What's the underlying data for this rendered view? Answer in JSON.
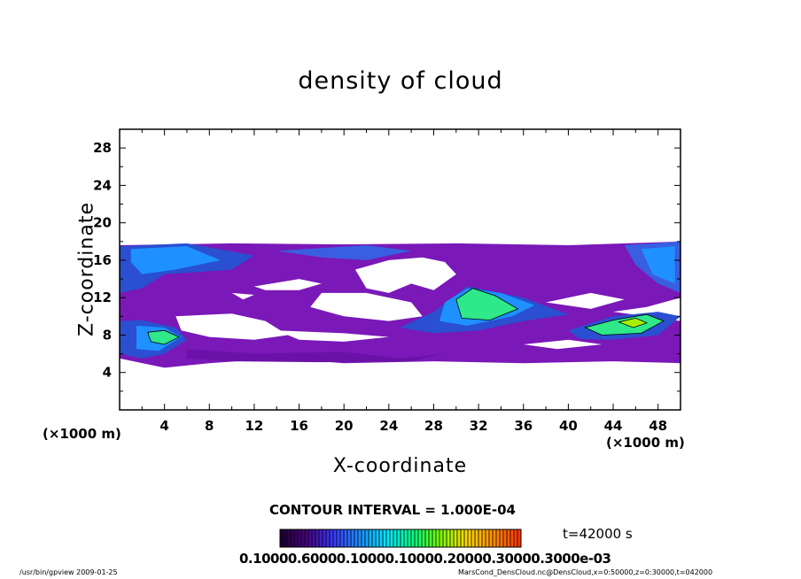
{
  "chart_data": {
    "type": "heatmap",
    "title": "density of cloud",
    "xlabel": "X-coordinate",
    "ylabel": "Z-coordinate",
    "x_unit": "(×1000 m)",
    "xlim": [
      0,
      50
    ],
    "ylim": [
      0,
      30
    ],
    "x_ticks": [
      "4",
      "8",
      "12",
      "16",
      "20",
      "24",
      "28",
      "32",
      "36",
      "40",
      "44",
      "48"
    ],
    "y_ticks": [
      "4",
      "8",
      "12",
      "16",
      "20",
      "24",
      "28"
    ],
    "contour_interval": "CONTOUR INTERVAL = 1.000E-04",
    "time": "t=42000 s",
    "colorbar_labels": "0.10000.60000.10000.10000.20000.30000.3000e-03",
    "colormap": [
      "#1a0030",
      "#4b0082",
      "#3a3aff",
      "#1e90ff",
      "#00e5ff",
      "#00ff7f",
      "#7fff00",
      "#ffd700",
      "#ff8c00",
      "#ff3000"
    ],
    "regions": [
      {
        "level": 1,
        "color": "#7a18b8",
        "points": [
          [
            0,
            17.6
          ],
          [
            10,
            17.8
          ],
          [
            20,
            17.7
          ],
          [
            30,
            17.8
          ],
          [
            40,
            17.6
          ],
          [
            50,
            18
          ],
          [
            50,
            12
          ],
          [
            47,
            11
          ],
          [
            44,
            10.5
          ],
          [
            50,
            9.5
          ],
          [
            50,
            5
          ],
          [
            44,
            5.2
          ],
          [
            36,
            5
          ],
          [
            28,
            5.2
          ],
          [
            20,
            5
          ],
          [
            14,
            5.5
          ],
          [
            8,
            5
          ],
          [
            4,
            4.5
          ],
          [
            0,
            5.5
          ]
        ]
      },
      {
        "level": 1,
        "color": "#6a12a8",
        "points": [
          [
            6,
            6.5
          ],
          [
            12,
            6
          ],
          [
            20,
            6.2
          ],
          [
            25,
            5.5
          ],
          [
            29,
            6
          ],
          [
            26,
            5.2
          ],
          [
            18,
            5.1
          ],
          [
            10,
            5.2
          ],
          [
            6,
            5.5
          ]
        ]
      },
      {
        "level": 2,
        "color": "#2a4fd0",
        "points": [
          [
            0,
            17.5
          ],
          [
            6,
            17.8
          ],
          [
            12,
            16.5
          ],
          [
            10,
            15
          ],
          [
            4,
            14.5
          ],
          [
            2,
            13
          ],
          [
            0,
            12.5
          ]
        ]
      },
      {
        "level": 2,
        "color": "#3a5ee0",
        "points": [
          [
            14,
            17
          ],
          [
            22,
            17.6
          ],
          [
            26,
            17
          ],
          [
            22,
            16
          ],
          [
            18,
            16.3
          ]
        ]
      },
      {
        "level": 2,
        "color": "#3a5ee0",
        "points": [
          [
            45,
            17.6
          ],
          [
            50,
            18
          ],
          [
            50,
            12.5
          ],
          [
            48,
            13.5
          ],
          [
            46,
            15.5
          ]
        ]
      },
      {
        "level": 2,
        "color": "#2a4fd0",
        "points": [
          [
            0,
            9.5
          ],
          [
            2,
            9.6
          ],
          [
            5,
            8.8
          ],
          [
            6,
            7.5
          ],
          [
            4,
            6
          ],
          [
            2,
            5.5
          ],
          [
            0,
            6
          ]
        ]
      },
      {
        "level": 2,
        "color": "#2a4fd0",
        "points": [
          [
            28,
            10.5
          ],
          [
            31,
            13.2
          ],
          [
            36,
            12
          ],
          [
            40,
            10.2
          ],
          [
            36,
            9.5
          ],
          [
            32,
            8.5
          ],
          [
            28,
            8.2
          ],
          [
            25,
            8.8
          ]
        ]
      },
      {
        "level": 2,
        "color": "#2a4fd0",
        "points": [
          [
            40,
            8.5
          ],
          [
            44,
            10
          ],
          [
            48,
            10.5
          ],
          [
            50,
            10
          ],
          [
            48,
            8
          ],
          [
            44,
            7.5
          ],
          [
            41,
            7.6
          ]
        ]
      },
      {
        "level": 3,
        "color": "#1e90ff",
        "points": [
          [
            1,
            17.2
          ],
          [
            6,
            17.5
          ],
          [
            9,
            16
          ],
          [
            5,
            15
          ],
          [
            2,
            14.5
          ],
          [
            1,
            15.8
          ]
        ]
      },
      {
        "level": 3,
        "color": "#1e90ff",
        "points": [
          [
            46.5,
            17.2
          ],
          [
            49.5,
            17.5
          ],
          [
            49.5,
            13.5
          ],
          [
            47.5,
            14.5
          ]
        ]
      },
      {
        "level": 3,
        "color": "#1e90ff",
        "points": [
          [
            29,
            11.5
          ],
          [
            31,
            13
          ],
          [
            34,
            12.5
          ],
          [
            37,
            11.2
          ],
          [
            35,
            10
          ],
          [
            31,
            9
          ],
          [
            28.5,
            9.5
          ]
        ]
      },
      {
        "level": 3,
        "color": "#1e90ff",
        "points": [
          [
            1.5,
            9
          ],
          [
            4,
            8.8
          ],
          [
            5.5,
            7.8
          ],
          [
            3.5,
            6.3
          ],
          [
            1.5,
            6.5
          ]
        ]
      },
      {
        "level": 4,
        "color": "#2ee88a",
        "points": [
          [
            30,
            11.8
          ],
          [
            31.5,
            13
          ],
          [
            33.5,
            12.2
          ],
          [
            35.5,
            10.8
          ],
          [
            33,
            9.6
          ],
          [
            30.5,
            9.8
          ]
        ]
      },
      {
        "level": 4,
        "color": "#2ee88a",
        "points": [
          [
            41.5,
            8.8
          ],
          [
            44,
            9.6
          ],
          [
            47,
            10.2
          ],
          [
            48.5,
            9.5
          ],
          [
            46.5,
            8.2
          ],
          [
            43,
            8
          ]
        ]
      },
      {
        "level": 4,
        "color": "#2ee88a",
        "points": [
          [
            2.5,
            8.3
          ],
          [
            4,
            8.5
          ],
          [
            5.3,
            7.8
          ],
          [
            4,
            7
          ],
          [
            2.8,
            7.3
          ]
        ]
      },
      {
        "level": 5,
        "color": "#a8f000",
        "points": [
          [
            44.5,
            9.4
          ],
          [
            46,
            9.8
          ],
          [
            47,
            9.3
          ],
          [
            45.8,
            8.8
          ]
        ]
      }
    ],
    "gaps": [
      {
        "points": [
          [
            21,
            15
          ],
          [
            24,
            16
          ],
          [
            27,
            16.3
          ],
          [
            29,
            15.8
          ],
          [
            30,
            14.5
          ],
          [
            28,
            12.8
          ],
          [
            26,
            13.5
          ],
          [
            24,
            12.5
          ],
          [
            22,
            13
          ]
        ]
      },
      {
        "points": [
          [
            12,
            13.2
          ],
          [
            16,
            14
          ],
          [
            18,
            13.5
          ],
          [
            16,
            12.8
          ],
          [
            13,
            12.8
          ]
        ]
      },
      {
        "points": [
          [
            18,
            12.5
          ],
          [
            22,
            12.5
          ],
          [
            26,
            11.5
          ],
          [
            27,
            10
          ],
          [
            24,
            9.5
          ],
          [
            20,
            10
          ],
          [
            17,
            11
          ]
        ]
      },
      {
        "points": [
          [
            5,
            10
          ],
          [
            10,
            10.3
          ],
          [
            13,
            9.5
          ],
          [
            15,
            8
          ],
          [
            12,
            7.5
          ],
          [
            8,
            7.8
          ],
          [
            5.5,
            8.5
          ]
        ]
      },
      {
        "points": [
          [
            14,
            8.5
          ],
          [
            20,
            8.2
          ],
          [
            24,
            7.8
          ],
          [
            20,
            7.3
          ],
          [
            16,
            7.5
          ]
        ]
      },
      {
        "points": [
          [
            10,
            12.5
          ],
          [
            12,
            12.3
          ],
          [
            11,
            11.8
          ]
        ]
      },
      {
        "points": [
          [
            38,
            11.5
          ],
          [
            42,
            12.5
          ],
          [
            45,
            11.8
          ],
          [
            42,
            10.8
          ]
        ]
      },
      {
        "points": [
          [
            36,
            7
          ],
          [
            40,
            7.5
          ],
          [
            43,
            7
          ],
          [
            39,
            6.5
          ]
        ]
      }
    ]
  },
  "footer": {
    "left": "/usr/bin/gpview  2009-01-25",
    "right": "MarsCond_DensCloud.nc@DensCloud,x=0:50000,z=0:30000,t=042000"
  }
}
